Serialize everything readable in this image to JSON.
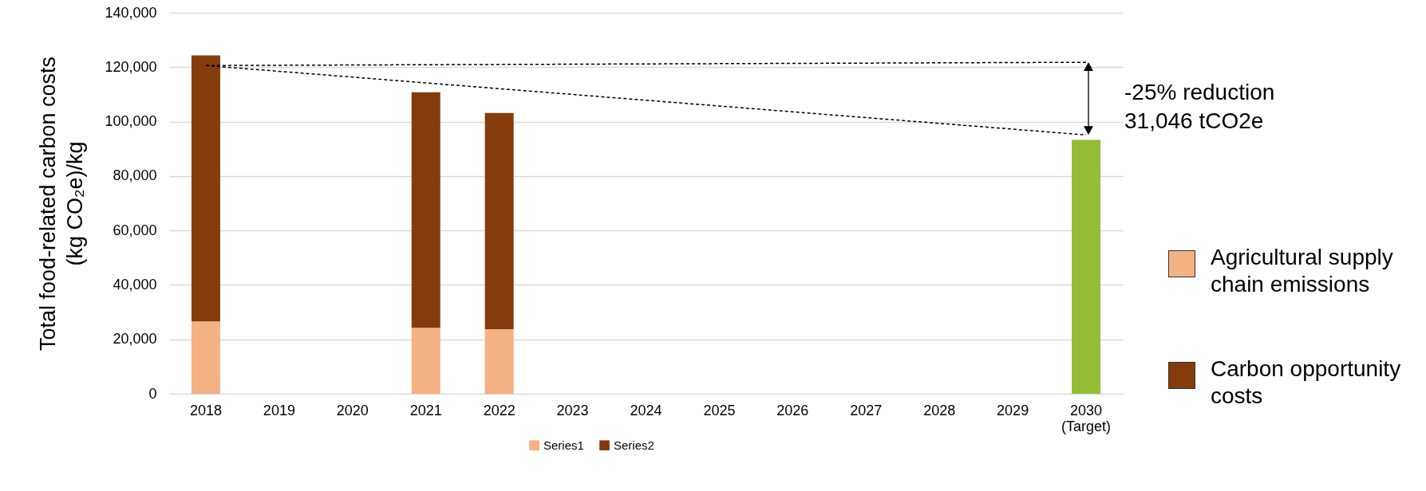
{
  "chart_data": {
    "type": "bar",
    "stacked": true,
    "ylabel": "Total food-related carbon costs\n(kg CO₂e)/kg",
    "categories": [
      "2018",
      "2019",
      "2020",
      "2021",
      "2022",
      "2023",
      "2024",
      "2025",
      "2026",
      "2027",
      "2028",
      "2029",
      "2030\n(Target)"
    ],
    "series": [
      {
        "name": "Series1",
        "color": "#f4b183",
        "values": [
          26600,
          null,
          null,
          24200,
          23700,
          null,
          null,
          null,
          null,
          null,
          null,
          null,
          null
        ]
      },
      {
        "name": "Series2",
        "color": "#843c0c",
        "values": [
          97700,
          null,
          null,
          86600,
          79500,
          null,
          null,
          null,
          null,
          null,
          null,
          null,
          null
        ]
      },
      {
        "color": "#96bb34",
        "values": [
          null,
          null,
          null,
          null,
          null,
          null,
          null,
          null,
          null,
          null,
          null,
          null,
          93300
        ]
      },
      {
        "type": "line",
        "color": "#000000",
        "line_style": "dashed",
        "marker": "none",
        "values": [
          120600,
          null,
          null,
          null,
          null,
          null,
          null,
          null,
          null,
          null,
          null,
          null,
          121800
        ]
      },
      {
        "type": "line",
        "color": "#000000",
        "line_style": "dashed",
        "marker": "none",
        "values": [
          120600,
          null,
          null,
          null,
          null,
          null,
          null,
          null,
          null,
          null,
          null,
          null,
          95100
        ]
      }
    ],
    "ylim": [
      0,
      140000
    ],
    "yticks": [
      {
        "value": 0,
        "label": "0"
      },
      {
        "value": 20000,
        "label": "20,000"
      },
      {
        "value": 40000,
        "label": "40,000"
      },
      {
        "value": 60000,
        "label": "60,000"
      },
      {
        "value": 80000,
        "label": "80,000"
      },
      {
        "value": 100000,
        "label": "100,000"
      },
      {
        "value": 120000,
        "label": "120,000"
      },
      {
        "value": 140000,
        "label": "140,000"
      }
    ],
    "grid": "y",
    "legend": "bottom",
    "annotations": [
      "-25% reduction\n31,046 tCO2e",
      "Agricultural supply chain emissions",
      "Carbon opportunity costs"
    ]
  }
}
